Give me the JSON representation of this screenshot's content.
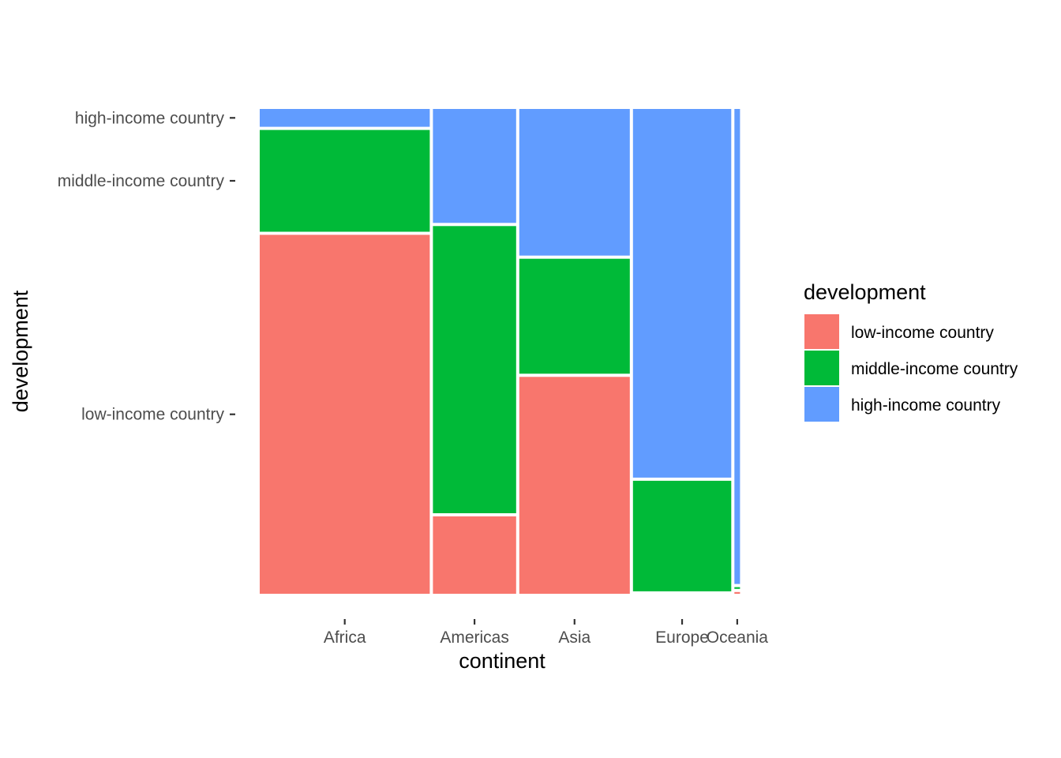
{
  "chart_data": {
    "type": "mosaic",
    "xlabel": "continent",
    "ylabel": "development",
    "grid": false,
    "legend_position": "right",
    "legend": {
      "title": "development",
      "entries": [
        {
          "label": "low-income country",
          "color": "#F8766D"
        },
        {
          "label": "middle-income country",
          "color": "#00BA38"
        },
        {
          "label": "high-income country",
          "color": "#619CFF"
        }
      ]
    },
    "y_tick_labels": [
      "low-income country",
      "middle-income country",
      "high-income country"
    ],
    "categories": [
      "Africa",
      "Americas",
      "Asia",
      "Europe",
      "Oceania"
    ],
    "column_share": [
      0.355,
      0.177,
      0.233,
      0.208,
      0.018
    ],
    "series": [
      {
        "name": "low-income country",
        "values": [
          0.742,
          0.165,
          0.451,
          0.005,
          0.01
        ]
      },
      {
        "name": "middle-income country",
        "values": [
          0.215,
          0.595,
          0.242,
          0.233,
          0.01
        ]
      },
      {
        "name": "high-income country",
        "values": [
          0.043,
          0.24,
          0.307,
          0.762,
          0.98
        ]
      }
    ]
  }
}
